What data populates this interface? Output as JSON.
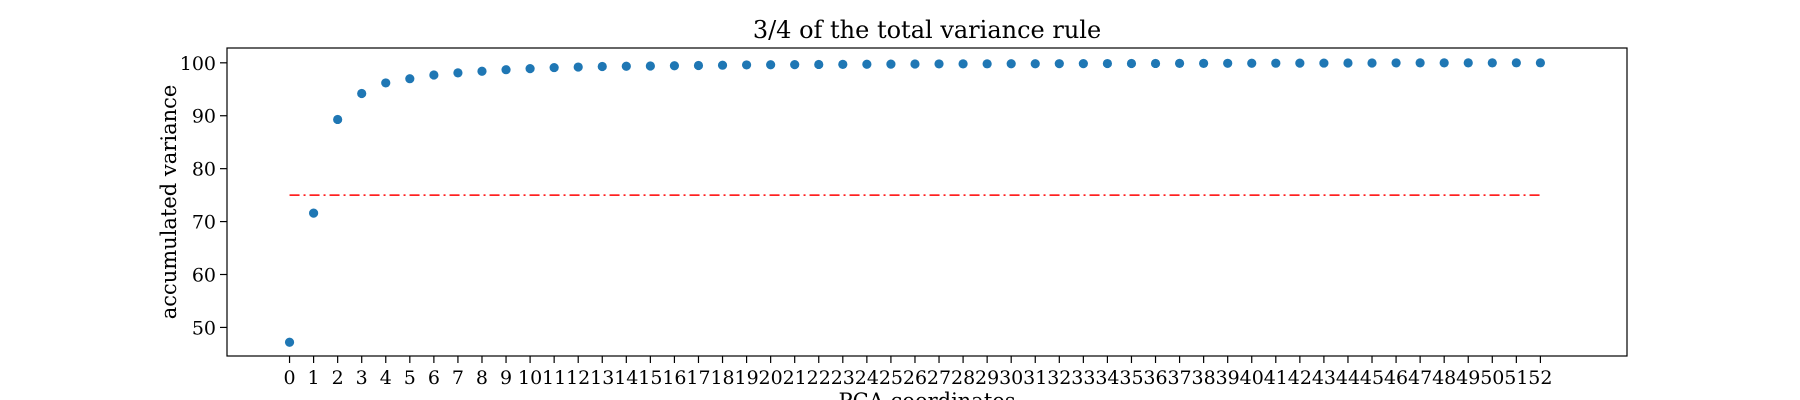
{
  "chart_data": {
    "type": "scatter",
    "title": "3/4 of the total variance rule",
    "xlabel": "PCA coordinates",
    "ylabel": "accumulated variance",
    "x": [
      0,
      1,
      2,
      3,
      4,
      5,
      6,
      7,
      8,
      9,
      10,
      11,
      12,
      13,
      14,
      15,
      16,
      17,
      18,
      19,
      20,
      21,
      22,
      23,
      24,
      25,
      26,
      27,
      28,
      29,
      30,
      31,
      32,
      33,
      34,
      35,
      36,
      37,
      38,
      39,
      40,
      41,
      42,
      43,
      44,
      45,
      46,
      47,
      48,
      49,
      50,
      51,
      52
    ],
    "y": [
      47.2,
      71.6,
      89.3,
      94.2,
      96.2,
      97.0,
      97.7,
      98.1,
      98.4,
      98.7,
      98.9,
      99.1,
      99.2,
      99.3,
      99.35,
      99.4,
      99.45,
      99.5,
      99.55,
      99.6,
      99.63,
      99.66,
      99.69,
      99.71,
      99.73,
      99.75,
      99.77,
      99.79,
      99.8,
      99.81,
      99.82,
      99.83,
      99.84,
      99.85,
      99.86,
      99.87,
      99.88,
      99.89,
      99.9,
      99.91,
      99.92,
      99.93,
      99.94,
      99.95,
      99.96,
      99.97,
      99.98,
      99.985,
      99.99,
      99.993,
      99.996,
      99.998,
      100.0
    ],
    "marker_color": "#1f77b4",
    "threshold": {
      "value": 75,
      "color": "#ff0000",
      "style": "dashdot"
    },
    "xticks": [
      0,
      1,
      2,
      3,
      4,
      5,
      6,
      7,
      8,
      9,
      10,
      11,
      12,
      13,
      14,
      15,
      16,
      17,
      18,
      19,
      20,
      21,
      22,
      23,
      24,
      25,
      26,
      27,
      28,
      29,
      30,
      31,
      32,
      33,
      34,
      35,
      36,
      37,
      38,
      39,
      40,
      41,
      42,
      43,
      44,
      45,
      46,
      47,
      48,
      49,
      50,
      51,
      52
    ],
    "yticks": [
      50,
      60,
      70,
      80,
      90,
      100
    ],
    "xlim": [
      -2.6,
      55.6
    ],
    "ylim": [
      44.6,
      102.8
    ],
    "grid": false
  }
}
